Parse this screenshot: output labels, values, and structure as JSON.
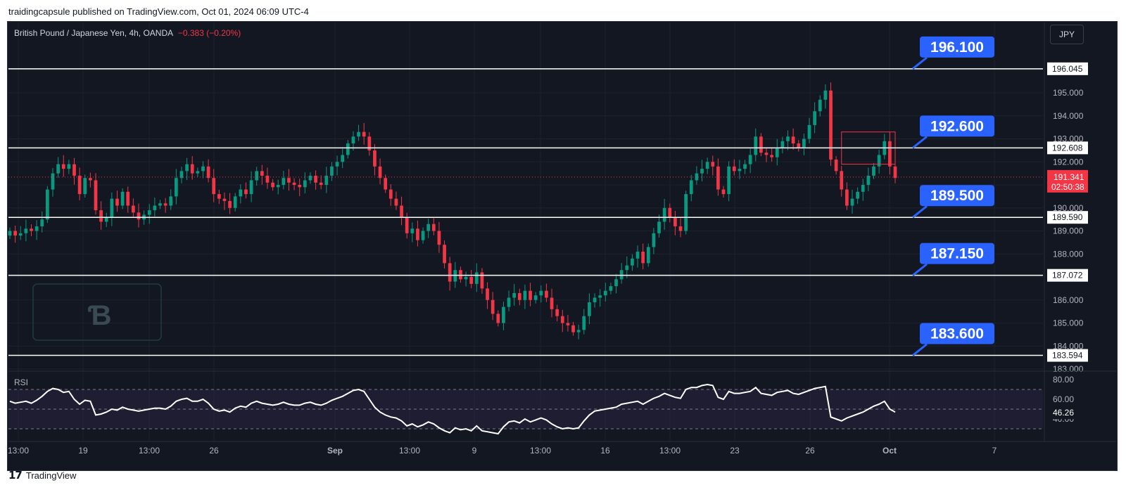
{
  "header": {
    "published_by": "traidingcapsule published on TradingView.com, Oct 01, 2024 06:09 UTC-4"
  },
  "symbol": {
    "title": "British Pound / Japanese Yen, 4h, OANDA",
    "change": "−0.383 (−0.20%)",
    "currency_button": "JPY"
  },
  "footer": {
    "brand": "TradingView"
  },
  "colors": {
    "up": "#089981",
    "down": "#f23645",
    "callout": "#2962ff",
    "background": "#131722",
    "level_line": "#ffffff",
    "rsi_band": "#7e57c2"
  },
  "chart_data": [
    {
      "type": "candlestick",
      "title": "British Pound / Japanese Yen, 4h, OANDA",
      "xlabel": "",
      "ylabel": "",
      "ylim": [
        183.0,
        197.2
      ],
      "price_ticks": [
        "196.000",
        "195.000",
        "194.000",
        "193.000",
        "192.000",
        "191.000",
        "190.000",
        "189.000",
        "188.000",
        "187.000",
        "186.000",
        "185.000",
        "184.000",
        "183.000"
      ],
      "time_ticks": [
        "13:00",
        "19",
        "13:00",
        "26",
        "Sep",
        "13:00",
        "9",
        "13:00",
        "16",
        "13:00",
        "23",
        "26",
        "Oct",
        "7"
      ],
      "last_price": "191.341",
      "countdown": "02:50:38",
      "levels": [
        {
          "line_label": "196.045",
          "callout": "196.100",
          "value": 196.045
        },
        {
          "line_label": "192.608",
          "callout": "192.600",
          "value": 192.608
        },
        {
          "line_label": "189.590",
          "callout": "189.500",
          "value": 189.59
        },
        {
          "line_label": "187.072",
          "callout": "187.150",
          "value": 187.072
        },
        {
          "line_label": "183.594",
          "callout": "183.600",
          "value": 183.594
        }
      ],
      "close_series": [
        189.0,
        188.8,
        188.9,
        189.1,
        189.0,
        189.2,
        189.5,
        190.8,
        191.5,
        191.9,
        191.7,
        191.9,
        191.4,
        190.6,
        191.3,
        191.2,
        189.9,
        189.4,
        189.6,
        190.4,
        190.1,
        190.7,
        190.1,
        189.8,
        189.5,
        189.7,
        189.9,
        190.1,
        190.2,
        190.1,
        190.5,
        191.3,
        191.6,
        191.9,
        191.5,
        191.6,
        191.8,
        191.3,
        190.6,
        190.4,
        190.3,
        190.0,
        190.5,
        190.8,
        190.6,
        191.2,
        191.6,
        191.4,
        191.1,
        190.9,
        191.0,
        191.3,
        191.1,
        191.0,
        190.9,
        191.2,
        191.4,
        191.1,
        191.0,
        191.4,
        191.8,
        192.0,
        192.3,
        192.8,
        193.1,
        193.3,
        193.1,
        192.5,
        191.8,
        191.3,
        190.8,
        190.4,
        190.1,
        189.6,
        188.9,
        189.1,
        188.6,
        189.0,
        189.3,
        189.0,
        188.4,
        187.6,
        186.8,
        187.3,
        186.9,
        187.0,
        186.7,
        187.2,
        186.5,
        186.0,
        185.4,
        185.0,
        185.7,
        186.1,
        186.3,
        186.0,
        186.4,
        186.0,
        186.2,
        186.4,
        186.1,
        185.6,
        185.3,
        185.0,
        184.9,
        184.6,
        184.7,
        185.3,
        185.9,
        186.1,
        186.2,
        186.4,
        186.6,
        186.9,
        187.3,
        187.5,
        187.8,
        188.1,
        187.6,
        188.3,
        188.9,
        189.4,
        190.0,
        189.6,
        189.2,
        189.0,
        190.6,
        191.2,
        191.5,
        191.7,
        192.0,
        191.8,
        190.8,
        190.6,
        191.8,
        191.6,
        191.7,
        191.9,
        192.3,
        193.1,
        192.4,
        192.3,
        192.2,
        192.6,
        192.9,
        193.1,
        192.8,
        192.6,
        193.0,
        193.6,
        194.2,
        194.7,
        195.1,
        192.1,
        191.6,
        190.8,
        190.1,
        190.4,
        190.7,
        191.0,
        191.4,
        191.8,
        192.3,
        192.9,
        191.8,
        191.3
      ],
      "rsi": {
        "label": "RSI",
        "value": "46.26",
        "ticks": [
          "80.00",
          "60.00",
          "40.00"
        ],
        "series": [
          58,
          56,
          57,
          58,
          56,
          59,
          63,
          68,
          71,
          70,
          67,
          68,
          60,
          55,
          59,
          58,
          44,
          45,
          47,
          50,
          49,
          52,
          50,
          49,
          48,
          49,
          50,
          51,
          51,
          50,
          53,
          58,
          60,
          61,
          58,
          58,
          60,
          56,
          50,
          48,
          49,
          47,
          51,
          53,
          52,
          56,
          58,
          56,
          55,
          54,
          55,
          57,
          55,
          54,
          54,
          56,
          57,
          55,
          54,
          56,
          59,
          61,
          63,
          66,
          69,
          70,
          68,
          60,
          52,
          47,
          44,
          42,
          41,
          38,
          33,
          35,
          32,
          34,
          37,
          35,
          31,
          28,
          26,
          31,
          29,
          30,
          28,
          33,
          28,
          27,
          26,
          25,
          32,
          37,
          38,
          36,
          40,
          37,
          39,
          41,
          39,
          35,
          32,
          30,
          31,
          30,
          31,
          38,
          44,
          48,
          49,
          50,
          51,
          52,
          55,
          56,
          57,
          58,
          55,
          58,
          61,
          63,
          66,
          64,
          62,
          61,
          70,
          72,
          72,
          74,
          75,
          74,
          62,
          60,
          68,
          66,
          66,
          67,
          68,
          72,
          66,
          65,
          64,
          67,
          68,
          69,
          66,
          65,
          67,
          69,
          71,
          72,
          73,
          42,
          40,
          38,
          41,
          43,
          45,
          47,
          50,
          53,
          55,
          58,
          50,
          47
        ]
      }
    }
  ]
}
